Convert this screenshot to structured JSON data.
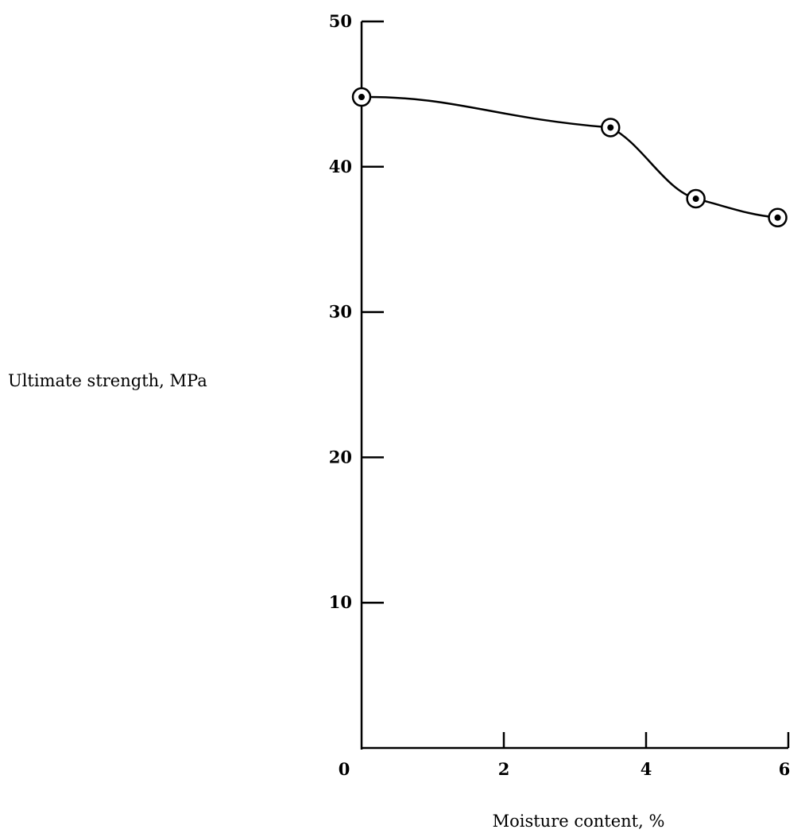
{
  "chart_data": {
    "type": "line",
    "title": "",
    "xlabel": "Moisture content, %",
    "ylabel": "Ultimate strength, MPa",
    "xlim": [
      0,
      6
    ],
    "ylim": [
      0,
      50
    ],
    "x_ticks": [
      "0",
      "2",
      "4",
      "6"
    ],
    "y_ticks": [
      "10",
      "20",
      "30",
      "40",
      "50"
    ],
    "grid": false,
    "series": [
      {
        "x": [
          0,
          3.5,
          4.7,
          5.85
        ],
        "y": [
          44.8,
          42.7,
          37.8,
          36.5
        ],
        "marker": "circled-dot"
      }
    ]
  }
}
